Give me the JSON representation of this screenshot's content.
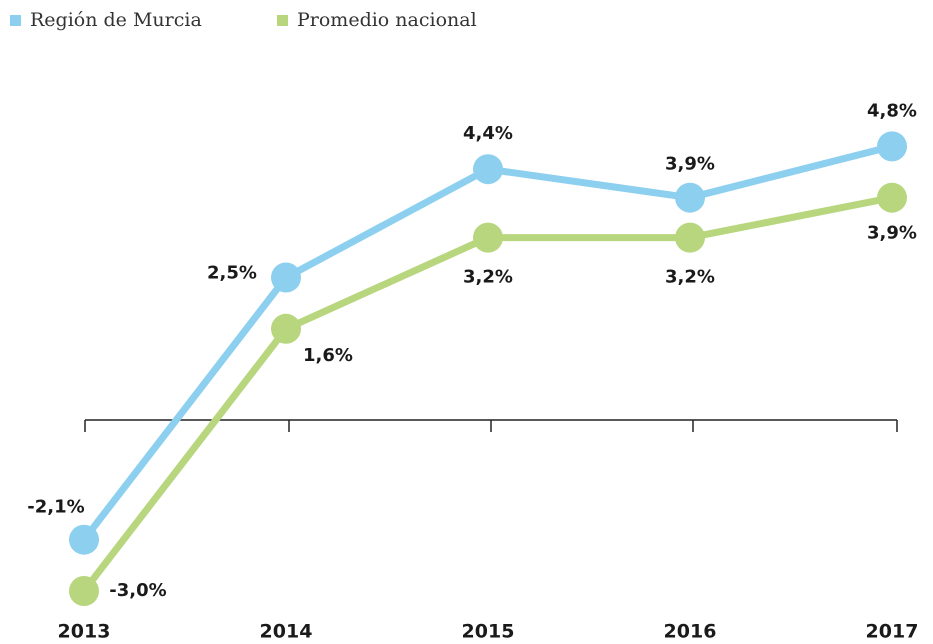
{
  "chart_data": {
    "type": "line",
    "categories": [
      "2013",
      "2014",
      "2015",
      "2016",
      "2017"
    ],
    "series": [
      {
        "name": "Región de Murcia",
        "color": "#8ccfef",
        "values": [
          -2.1,
          2.5,
          4.4,
          3.9,
          4.8
        ],
        "value_labels": [
          "-2,1%",
          "2,5%",
          "4,4%",
          "3,9%",
          "4,8%"
        ]
      },
      {
        "name": "Promedio nacional",
        "color": "#b7d67e",
        "values": [
          -3.0,
          1.6,
          3.2,
          3.2,
          3.9
        ],
        "value_labels": [
          "-3,0%",
          "1,6%",
          "3,2%",
          "3,2%",
          "3,9%"
        ]
      }
    ],
    "ylim": [
      -3.5,
      5.5
    ],
    "legend": "top-left"
  }
}
